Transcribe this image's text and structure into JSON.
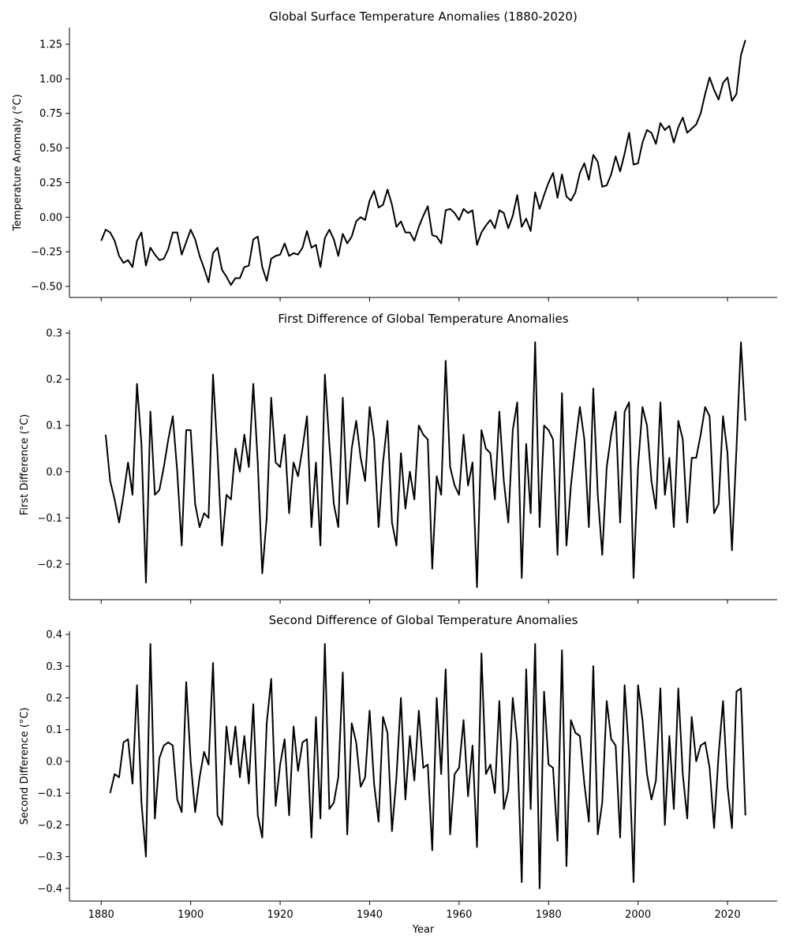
{
  "figure": {
    "xlabel": "Year"
  },
  "chart_data": [
    {
      "type": "line",
      "title": "Global Surface Temperature Anomalies (1880-2020)",
      "xlabel": "",
      "ylabel": "Temperature Anomaly (°C)",
      "color": "#000000",
      "xlim": [
        1872.9,
        2031.1
      ],
      "ylim": [
        -0.58,
        1.37
      ],
      "xticks": [
        1880,
        1900,
        1920,
        1940,
        1960,
        1980,
        2000,
        2020
      ],
      "yticks": [
        -0.5,
        -0.25,
        0.0,
        0.25,
        0.5,
        0.75,
        1.0,
        1.25
      ],
      "ytick_labels": [
        "−0.50",
        "−0.25",
        "0.00",
        "0.25",
        "0.50",
        "0.75",
        "1.00",
        "1.25"
      ],
      "xtick_labels_shown": false,
      "x_start": 1880,
      "values": [
        -0.17,
        -0.09,
        -0.11,
        -0.17,
        -0.28,
        -0.33,
        -0.31,
        -0.36,
        -0.17,
        -0.11,
        -0.35,
        -0.22,
        -0.27,
        -0.31,
        -0.3,
        -0.23,
        -0.11,
        -0.11,
        -0.27,
        -0.18,
        -0.09,
        -0.16,
        -0.28,
        -0.37,
        -0.47,
        -0.26,
        -0.22,
        -0.38,
        -0.43,
        -0.49,
        -0.44,
        -0.44,
        -0.36,
        -0.35,
        -0.16,
        -0.14,
        -0.36,
        -0.46,
        -0.3,
        -0.28,
        -0.27,
        -0.19,
        -0.28,
        -0.26,
        -0.27,
        -0.22,
        -0.1,
        -0.22,
        -0.2,
        -0.36,
        -0.15,
        -0.09,
        -0.16,
        -0.28,
        -0.12,
        -0.19,
        -0.14,
        -0.03,
        0.0,
        -0.02,
        0.12,
        0.19,
        0.07,
        0.09,
        0.2,
        0.09,
        -0.07,
        -0.03,
        -0.11,
        -0.11,
        -0.17,
        -0.07,
        0.01,
        0.08,
        -0.13,
        -0.14,
        -0.19,
        0.05,
        0.06,
        0.03,
        -0.02,
        0.06,
        0.03,
        0.05,
        -0.2,
        -0.11,
        -0.06,
        -0.02,
        -0.08,
        0.05,
        0.03,
        -0.08,
        0.01,
        0.16,
        -0.07,
        -0.01,
        -0.1,
        0.18,
        0.06,
        0.16,
        0.25,
        0.32,
        0.14,
        0.31,
        0.15,
        0.12,
        0.18,
        0.32,
        0.39,
        0.27,
        0.45,
        0.4,
        0.22,
        0.23,
        0.31,
        0.44,
        0.33,
        0.46,
        0.61,
        0.38,
        0.39,
        0.54,
        0.63,
        0.61,
        0.53,
        0.68,
        0.63,
        0.66,
        0.54,
        0.65,
        0.72,
        0.61,
        0.64,
        0.67,
        0.75,
        0.89,
        1.01,
        0.92,
        0.85,
        0.97,
        1.01,
        0.84,
        0.89,
        1.17,
        1.28
      ]
    },
    {
      "type": "line",
      "title": "First Difference of Global Temperature Anomalies",
      "xlabel": "",
      "ylabel": "First Difference (°C)",
      "color": "#000000",
      "xlim": [
        1872.9,
        2031.1
      ],
      "ylim": [
        -0.277,
        0.307
      ],
      "xticks": [
        1880,
        1900,
        1920,
        1940,
        1960,
        1980,
        2000,
        2020
      ],
      "yticks": [
        -0.2,
        -0.1,
        0.0,
        0.1,
        0.2,
        0.3
      ],
      "ytick_labels": [
        "−0.2",
        "−0.1",
        "0.0",
        "0.1",
        "0.2",
        "0.3"
      ],
      "xtick_labels_shown": false,
      "x_start": 1881,
      "values": [
        0.08,
        -0.02,
        -0.06,
        -0.11,
        -0.05,
        0.02,
        -0.05,
        0.19,
        0.06,
        -0.24,
        0.13,
        -0.05,
        -0.04,
        0.01,
        0.07,
        0.12,
        0.0,
        -0.16,
        0.09,
        0.09,
        -0.07,
        -0.12,
        -0.09,
        -0.1,
        0.21,
        0.04,
        -0.16,
        -0.05,
        -0.06,
        0.05,
        0.0,
        0.08,
        0.01,
        0.19,
        0.02,
        -0.22,
        -0.1,
        0.16,
        0.02,
        0.01,
        0.08,
        -0.09,
        0.02,
        -0.01,
        0.05,
        0.12,
        -0.12,
        0.02,
        -0.16,
        0.21,
        0.06,
        -0.07,
        -0.12,
        0.16,
        -0.07,
        0.05,
        0.11,
        0.03,
        -0.02,
        0.14,
        0.07,
        -0.12,
        0.02,
        0.11,
        -0.11,
        -0.16,
        0.04,
        -0.08,
        0.0,
        -0.06,
        0.1,
        0.08,
        0.07,
        -0.21,
        -0.01,
        -0.05,
        0.24,
        0.01,
        -0.03,
        -0.05,
        0.08,
        -0.03,
        0.02,
        -0.25,
        0.09,
        0.05,
        0.04,
        -0.06,
        0.13,
        -0.02,
        -0.11,
        0.09,
        0.15,
        -0.23,
        0.06,
        -0.09,
        0.28,
        -0.12,
        0.1,
        0.09,
        0.07,
        -0.18,
        0.17,
        -0.16,
        -0.03,
        0.06,
        0.14,
        0.07,
        -0.12,
        0.18,
        -0.05,
        -0.18,
        0.01,
        0.08,
        0.13,
        -0.11,
        0.13,
        0.15,
        -0.23,
        0.01,
        0.14,
        0.1,
        -0.02,
        -0.08,
        0.15,
        -0.05,
        0.03,
        -0.12,
        0.11,
        0.07,
        -0.11,
        0.03,
        0.03,
        0.08,
        0.14,
        0.12,
        -0.09,
        -0.07,
        0.12,
        0.04,
        -0.17,
        0.05,
        0.28,
        0.11
      ]
    },
    {
      "type": "line",
      "title": "Second Difference of Global Temperature Anomalies",
      "xlabel": "Year",
      "ylabel": "Second Difference (°C)",
      "color": "#000000",
      "xlim": [
        1872.9,
        2031.1
      ],
      "ylim": [
        -0.44,
        0.41
      ],
      "xticks": [
        1880,
        1900,
        1920,
        1940,
        1960,
        1980,
        2000,
        2020
      ],
      "xtick_labels": [
        "1880",
        "1900",
        "1920",
        "1940",
        "1960",
        "1980",
        "2000",
        "2020"
      ],
      "yticks": [
        -0.4,
        -0.3,
        -0.2,
        -0.1,
        0.0,
        0.1,
        0.2,
        0.3,
        0.4
      ],
      "ytick_labels": [
        "−0.4",
        "−0.3",
        "−0.2",
        "−0.1",
        "0.0",
        "0.1",
        "0.2",
        "0.3",
        "0.4"
      ],
      "xtick_labels_shown": true,
      "x_start": 1882,
      "values": [
        -0.1,
        -0.04,
        -0.05,
        0.06,
        0.07,
        -0.07,
        0.24,
        -0.13,
        -0.3,
        0.37,
        -0.18,
        0.01,
        0.05,
        0.06,
        0.05,
        -0.12,
        -0.16,
        0.25,
        0.0,
        -0.16,
        -0.05,
        0.03,
        -0.01,
        0.31,
        -0.17,
        -0.2,
        0.11,
        -0.01,
        0.11,
        -0.05,
        0.08,
        -0.07,
        0.18,
        -0.17,
        -0.24,
        0.12,
        0.26,
        -0.14,
        -0.01,
        0.07,
        -0.17,
        0.11,
        -0.03,
        0.06,
        0.07,
        -0.24,
        0.14,
        -0.18,
        0.37,
        -0.15,
        -0.13,
        -0.05,
        0.28,
        -0.23,
        0.12,
        0.06,
        -0.08,
        -0.05,
        0.16,
        -0.07,
        -0.19,
        0.14,
        0.09,
        -0.22,
        -0.05,
        0.2,
        -0.12,
        0.08,
        -0.06,
        0.16,
        -0.02,
        -0.01,
        -0.28,
        0.2,
        -0.04,
        0.29,
        -0.23,
        -0.04,
        -0.02,
        0.13,
        -0.11,
        0.05,
        -0.27,
        0.34,
        -0.04,
        -0.01,
        -0.1,
        0.19,
        -0.15,
        -0.09,
        0.2,
        0.06,
        -0.38,
        0.29,
        -0.15,
        0.37,
        -0.4,
        0.22,
        -0.01,
        -0.02,
        -0.25,
        0.35,
        -0.33,
        0.13,
        0.09,
        0.08,
        -0.07,
        -0.19,
        0.3,
        -0.23,
        -0.13,
        0.19,
        0.07,
        0.05,
        -0.24,
        0.24,
        0.02,
        -0.38,
        0.24,
        0.13,
        -0.04,
        -0.12,
        -0.06,
        0.23,
        -0.2,
        0.08,
        -0.15,
        0.23,
        -0.04,
        -0.18,
        0.14,
        0.0,
        0.05,
        0.06,
        -0.02,
        -0.21,
        0.02,
        0.19,
        -0.08,
        -0.21,
        0.22,
        0.23,
        -0.17
      ]
    }
  ]
}
